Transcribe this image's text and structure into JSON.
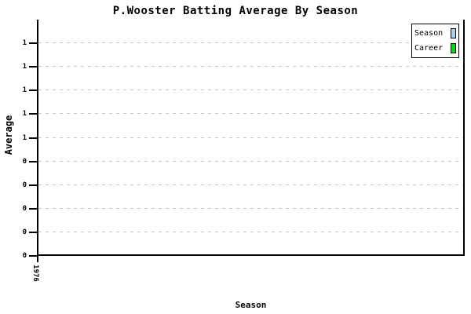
{
  "title": "P.Wooster Batting Average By Season",
  "y_axis": {
    "title": "Average"
  },
  "x_axis": {
    "title": "Season",
    "tick_label": "1976"
  },
  "legend": {
    "items": [
      {
        "label": "Season",
        "color": "#A9D3EE"
      },
      {
        "label": "Career",
        "color": "#00DD00"
      }
    ]
  },
  "colors": {
    "background": "#FFFFFF",
    "axis": "#000000",
    "grid": "#C8C8C8",
    "season_swatch": "#A9D3EE",
    "career_swatch": "#00DD00"
  },
  "chart_data": {
    "type": "line",
    "title": "P.Wooster Batting Average By Season",
    "xlabel": "Season",
    "ylabel": "Average",
    "categories": [
      "1976"
    ],
    "ylim": [
      0,
      1.0
    ],
    "y_ticks": [
      {
        "value": 0.0,
        "label": "0"
      },
      {
        "value": 0.1,
        "label": "0"
      },
      {
        "value": 0.2,
        "label": "0"
      },
      {
        "value": 0.3,
        "label": "0"
      },
      {
        "value": 0.4,
        "label": "0"
      },
      {
        "value": 0.5,
        "label": "1"
      },
      {
        "value": 0.6,
        "label": "1"
      },
      {
        "value": 0.7,
        "label": "1"
      },
      {
        "value": 0.8,
        "label": "1"
      },
      {
        "value": 0.9,
        "label": "1"
      }
    ],
    "grid": "horizontal-dashed",
    "legend_position": "top-right",
    "series": [
      {
        "name": "Season",
        "color": "#A9D3EE",
        "values": []
      },
      {
        "name": "Career",
        "color": "#00DD00",
        "values": []
      }
    ]
  }
}
